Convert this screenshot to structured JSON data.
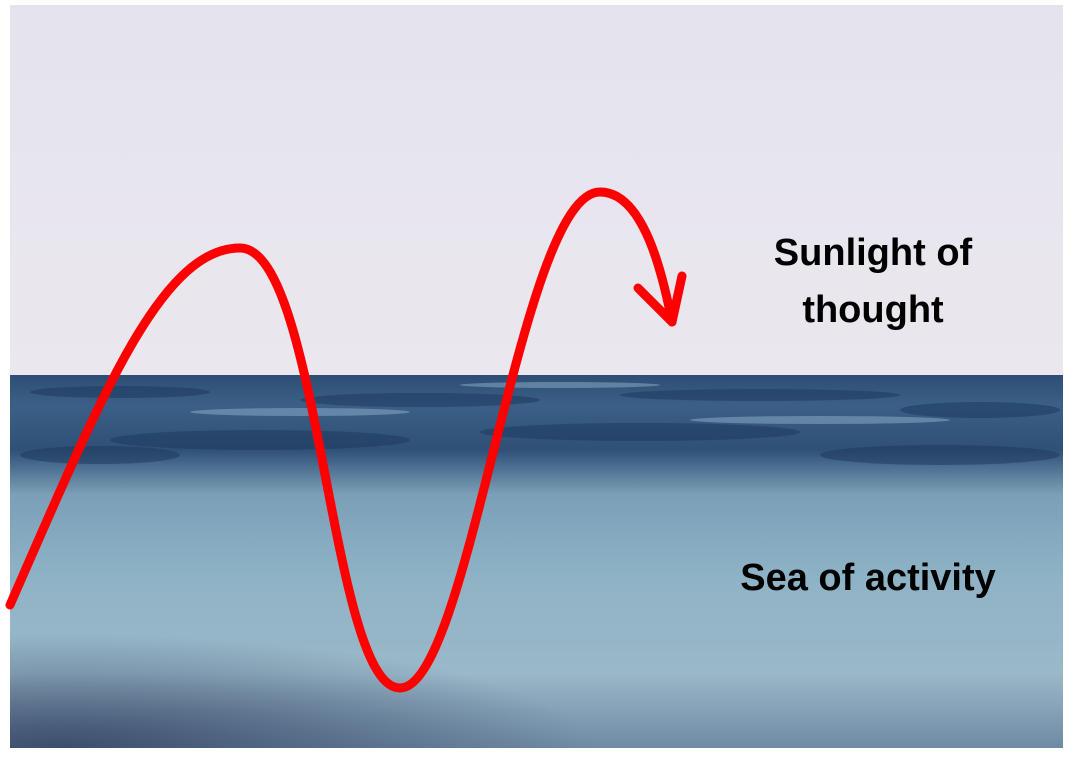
{
  "labels": {
    "upper": [
      "Sunlight of",
      "thought"
    ],
    "lower": "Sea of activity"
  }
}
